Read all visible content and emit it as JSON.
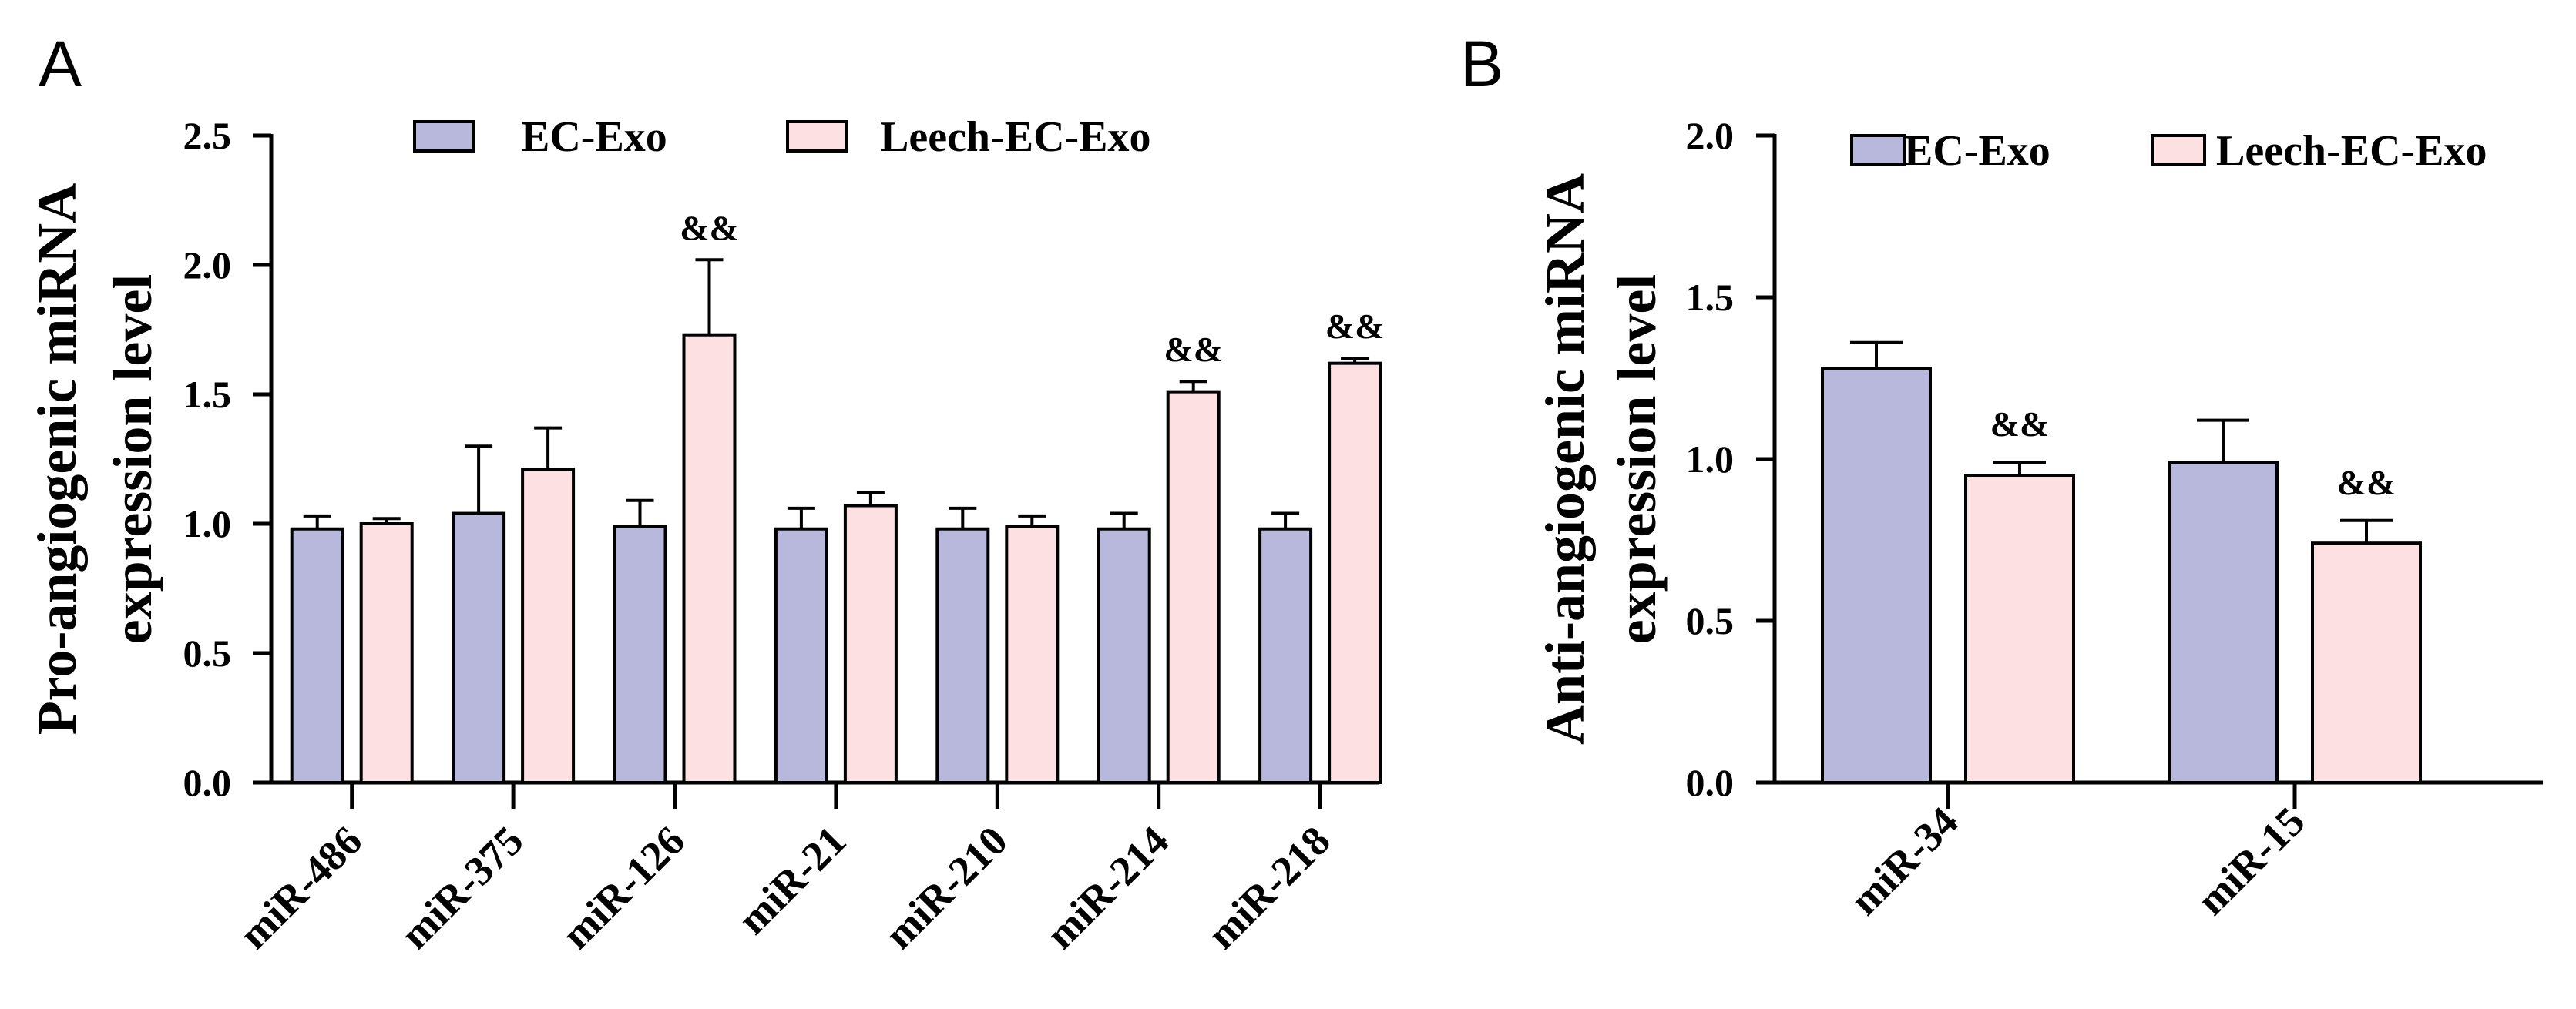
{
  "chart_data": [
    {
      "panel": "A",
      "type": "bar",
      "ylabel": "Pro-angiogenic miRNA expression level",
      "ylabel_lines": [
        "Pro-angiogenic miRNA",
        "expression  level"
      ],
      "ylim": [
        0,
        2.5
      ],
      "yticks": [
        "0.0",
        "0.5",
        "1.0",
        "1.5",
        "2.0",
        "2.5"
      ],
      "categories": [
        "miR-486",
        "miR-375",
        "miR-126",
        "miR-21",
        "miR-210",
        "miR-214",
        "miR-218"
      ],
      "series": [
        {
          "name": "EC-Exo",
          "color": "#b8b8dc",
          "values": [
            0.98,
            1.04,
            0.99,
            0.98,
            0.98,
            0.98,
            0.98
          ],
          "errors": [
            0.05,
            0.26,
            0.1,
            0.08,
            0.08,
            0.06,
            0.06
          ]
        },
        {
          "name": "Leech-EC-Exo",
          "color": "#fde0e2",
          "values": [
            1.0,
            1.21,
            1.73,
            1.07,
            0.99,
            1.51,
            1.62
          ],
          "errors": [
            0.02,
            0.16,
            0.29,
            0.05,
            0.04,
            0.04,
            0.02
          ]
        }
      ],
      "significance": [
        {
          "category": "miR-126",
          "series": "Leech-EC-Exo",
          "label": "&&"
        },
        {
          "category": "miR-214",
          "series": "Leech-EC-Exo",
          "label": "&&"
        },
        {
          "category": "miR-218",
          "series": "Leech-EC-Exo",
          "label": "&&"
        }
      ],
      "legend_position": "top-center"
    },
    {
      "panel": "B",
      "type": "bar",
      "ylabel": "Anti-angiogenic miRNA expression level",
      "ylabel_lines": [
        "Anti-angiogenic miRNA",
        "expression  level"
      ],
      "ylim": [
        0,
        2.0
      ],
      "yticks": [
        "0.0",
        "0.5",
        "1.0",
        "1.5",
        "2.0"
      ],
      "categories": [
        "miR-34",
        "miR-15"
      ],
      "series": [
        {
          "name": "EC-Exo",
          "color": "#b8b8dc",
          "values": [
            1.28,
            0.99
          ],
          "errors": [
            0.08,
            0.13
          ]
        },
        {
          "name": "Leech-EC-Exo",
          "color": "#fde0e2",
          "values": [
            0.95,
            0.74
          ],
          "errors": [
            0.04,
            0.07
          ]
        }
      ],
      "significance": [
        {
          "category": "miR-34",
          "series": "Leech-EC-Exo",
          "label": "&&"
        },
        {
          "category": "miR-15",
          "series": "Leech-EC-Exo",
          "label": "&&"
        }
      ],
      "legend_position": "top-right"
    }
  ]
}
